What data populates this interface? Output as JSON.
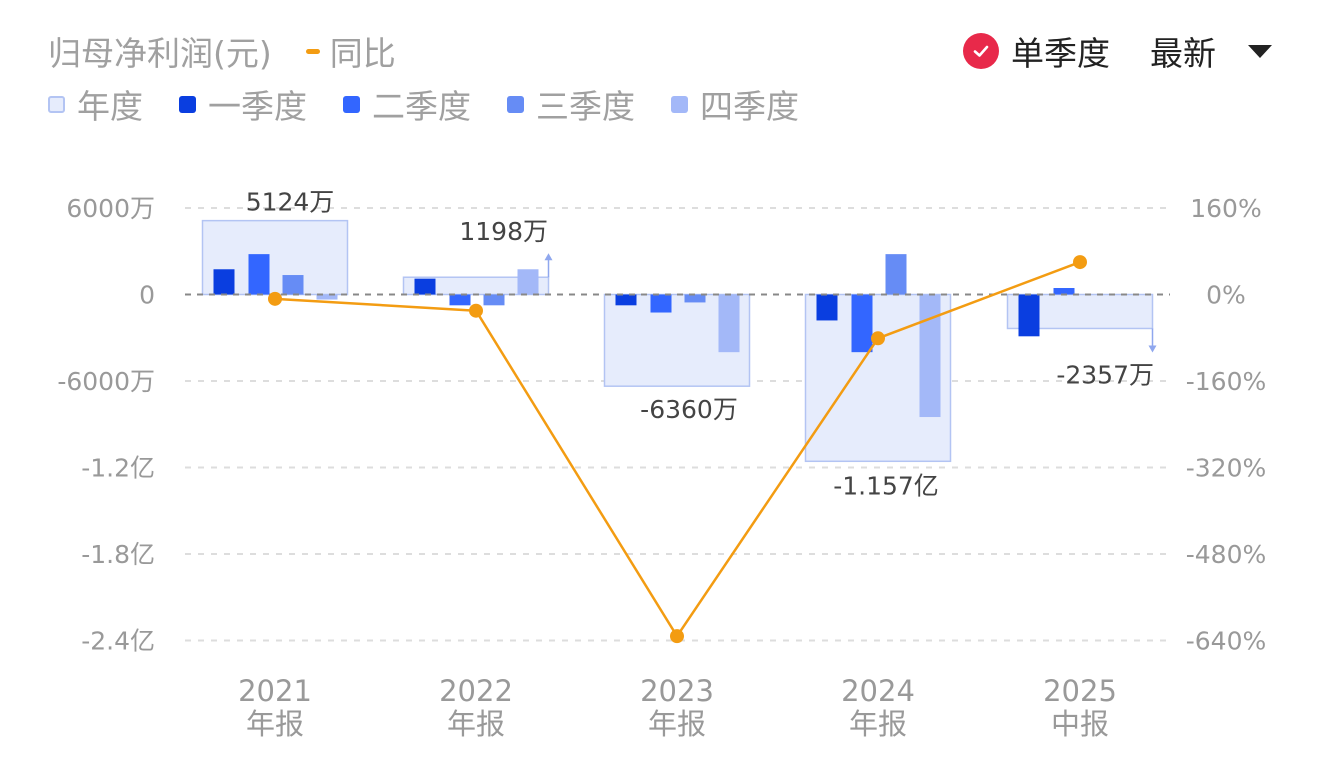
{
  "header": {
    "title": "归母净利润(元)",
    "yoy_label": "同比",
    "single_quarter_label": "单季度",
    "latest_label": "最新"
  },
  "colors": {
    "annual_fill": "#e6ecfc",
    "annual_stroke": "#b3c4f3",
    "q1": "#0a3ee0",
    "q2": "#3366ff",
    "q3": "#668cf5",
    "q4": "#a3b8f8",
    "yoy_line": "#f39c12",
    "check_badge": "#e8294a"
  },
  "legend": [
    {
      "key": "annual",
      "label": "年度"
    },
    {
      "key": "q1",
      "label": "一季度"
    },
    {
      "key": "q2",
      "label": "二季度"
    },
    {
      "key": "q3",
      "label": "三季度"
    },
    {
      "key": "q4",
      "label": "四季度"
    }
  ],
  "chart_data": {
    "type": "bar",
    "categories": [
      {
        "year": "2021",
        "period": "年报"
      },
      {
        "year": "2022",
        "period": "年报"
      },
      {
        "year": "2023",
        "period": "年报"
      },
      {
        "year": "2024",
        "period": "年报"
      },
      {
        "year": "2025",
        "period": "中报"
      }
    ],
    "annual": [
      {
        "value": 5124,
        "label": "5124万",
        "arrow": "none"
      },
      {
        "value": 1198,
        "label": "1198万",
        "arrow": "up"
      },
      {
        "value": -6360,
        "label": "-6360万",
        "arrow": "none"
      },
      {
        "value": -11570,
        "label": "-1.157亿",
        "arrow": "none"
      },
      {
        "value": -2357,
        "label": "-2357万",
        "arrow": "down"
      }
    ],
    "quarters": [
      [
        1750,
        2800,
        1350,
        -350
      ],
      [
        1100,
        -750,
        -750,
        1750
      ],
      [
        -750,
        -1250,
        -550,
        -4000
      ],
      [
        -1800,
        -4000,
        2800,
        -8500
      ],
      [
        -2900,
        450,
        null,
        null
      ]
    ],
    "yoy": [
      -8,
      -30,
      -632,
      -81,
      60
    ],
    "y_left": {
      "min": -24000,
      "max": 6000,
      "ticks": [
        6000,
        0,
        -6000,
        -12000,
        -18000,
        -24000
      ],
      "tick_labels": [
        "6000万",
        "0",
        "-6000万",
        "-1.2亿",
        "-1.8亿",
        "-2.4亿"
      ]
    },
    "y_right": {
      "min": -640,
      "max": 160,
      "ticks": [
        160,
        0,
        -160,
        -320,
        -480,
        -640
      ],
      "tick_labels": [
        "160%",
        "0%",
        "-160%",
        "-320%",
        "-480%",
        "-640%"
      ]
    },
    "grid": true
  }
}
